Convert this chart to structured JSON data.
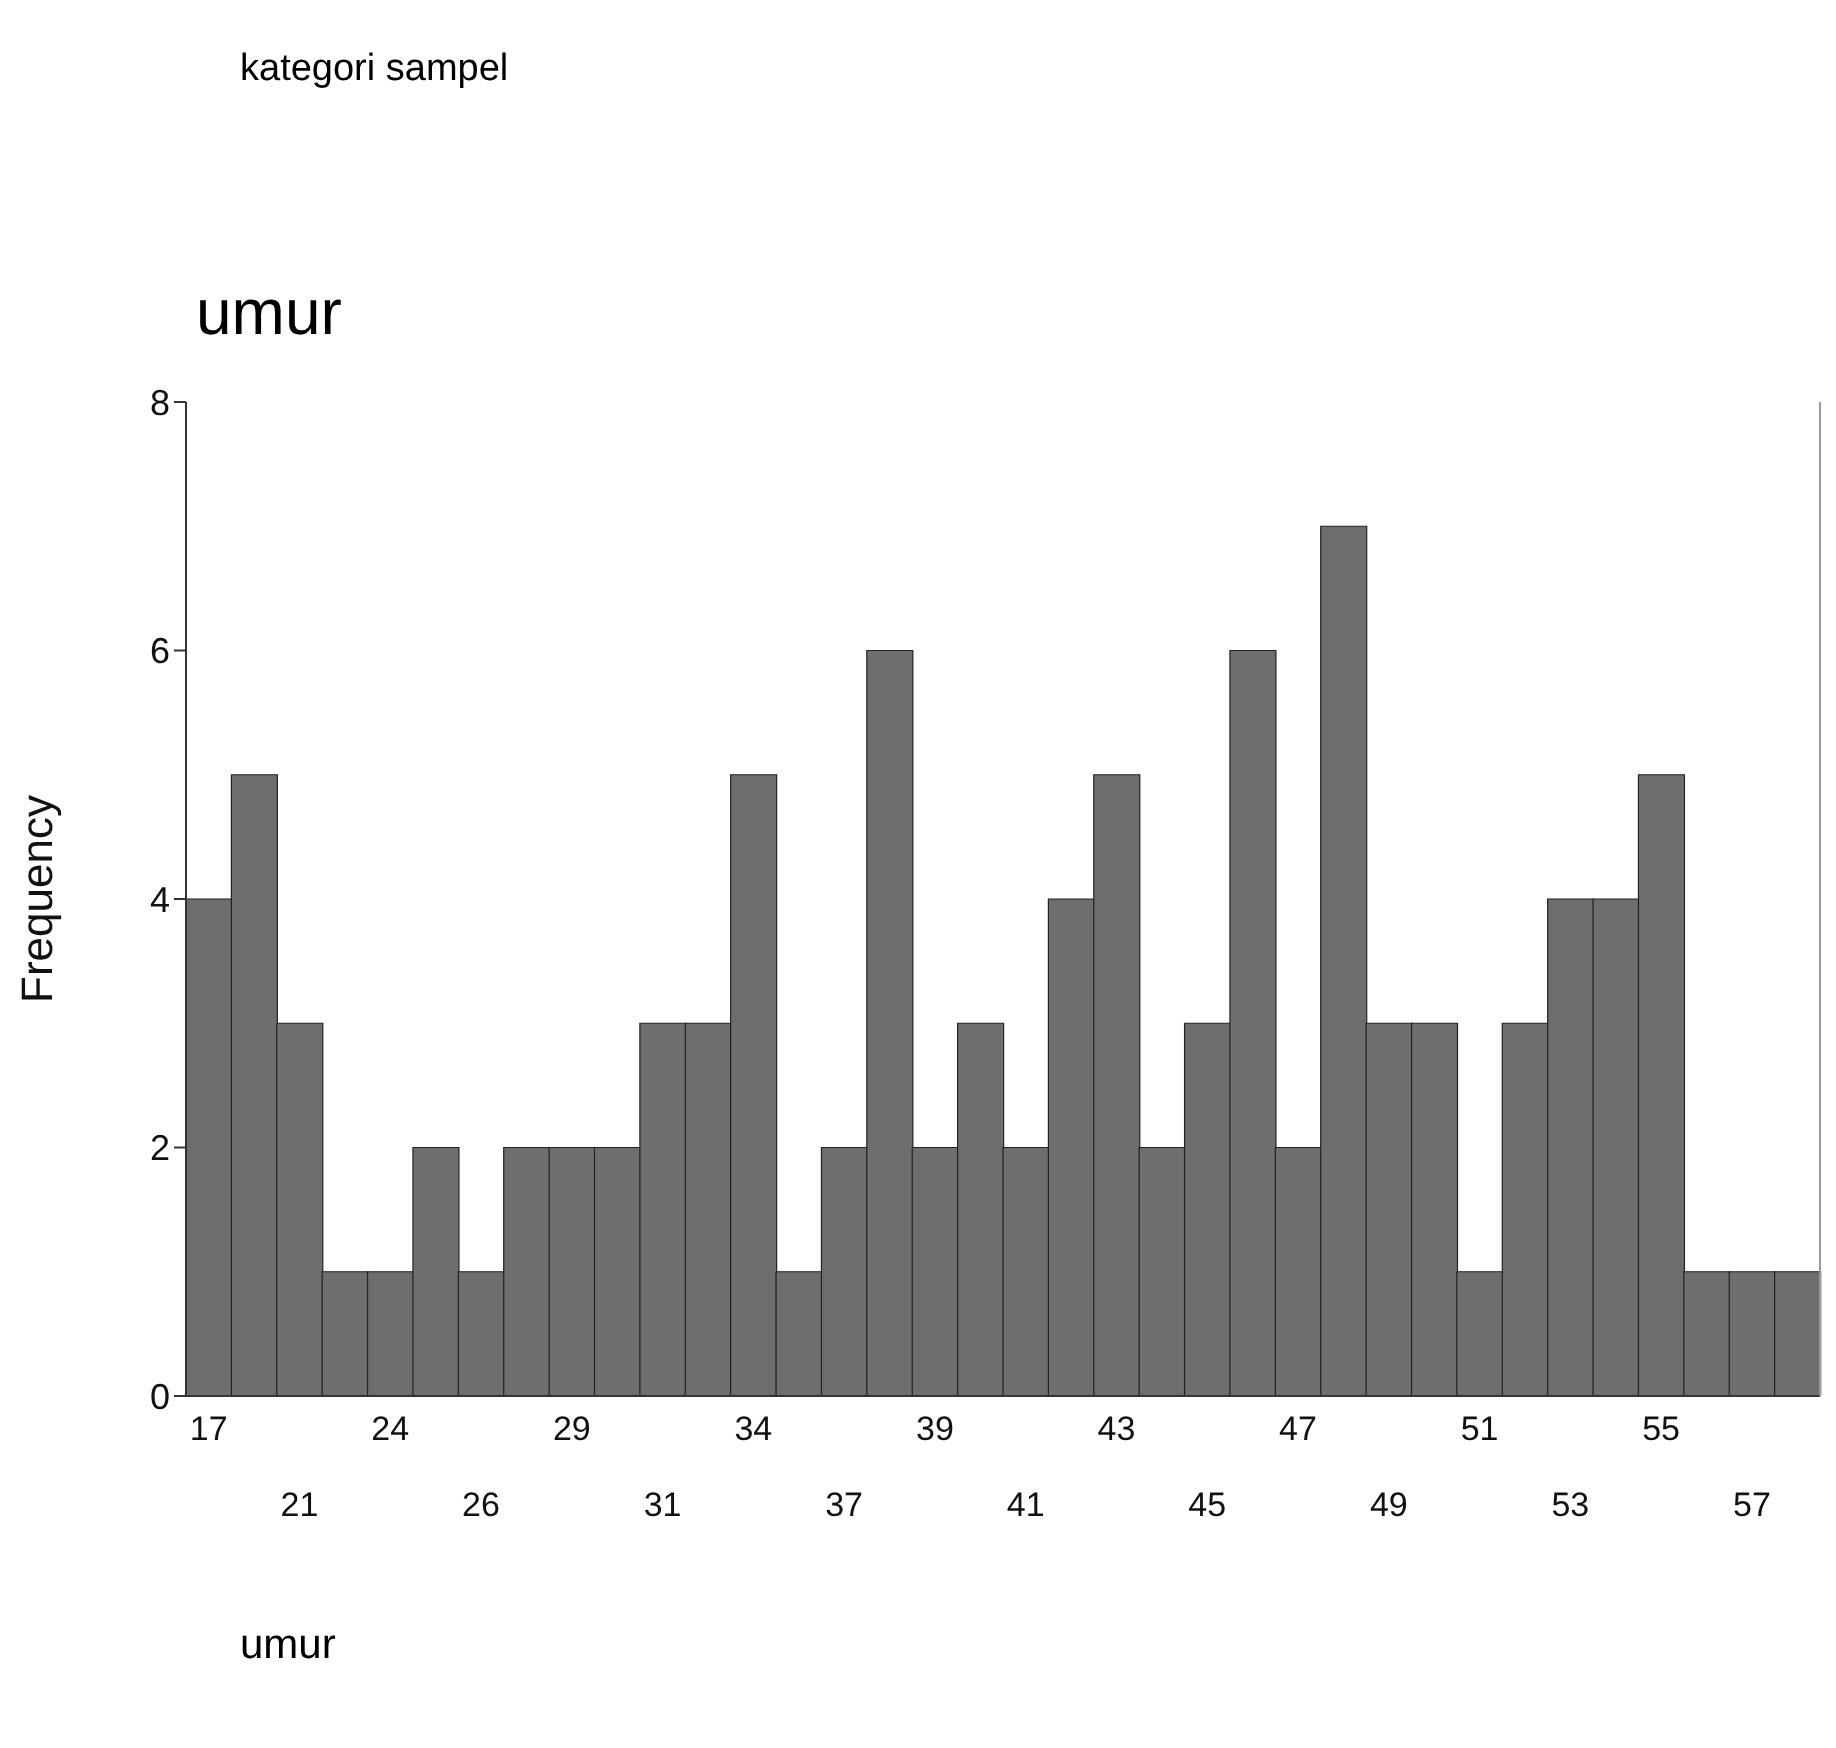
{
  "chart_data": {
    "type": "bar",
    "title": "umur",
    "xlabel": "umur",
    "ylabel": "Frequency",
    "annotations": [
      "kategori sampel"
    ],
    "categories": [
      "17",
      null,
      "21",
      null,
      "24",
      null,
      "26",
      null,
      "29",
      null,
      "31",
      null,
      "34",
      null,
      "37",
      null,
      "39",
      null,
      "41",
      null,
      "43",
      null,
      "45",
      null,
      "47",
      null,
      "49",
      null,
      "51",
      null,
      "53",
      null,
      "55",
      null,
      "57",
      null
    ],
    "values": [
      4,
      5,
      3,
      1,
      1,
      2,
      1,
      2,
      2,
      2,
      3,
      3,
      5,
      1,
      2,
      6,
      2,
      3,
      2,
      4,
      5,
      2,
      3,
      6,
      2,
      7,
      3,
      3,
      1,
      3,
      4,
      4,
      5,
      1,
      1,
      1
    ],
    "color": "#6e6e6e",
    "ylim": [
      0,
      8
    ],
    "yticks": [
      0,
      2,
      4,
      6,
      8
    ],
    "grid": false
  }
}
